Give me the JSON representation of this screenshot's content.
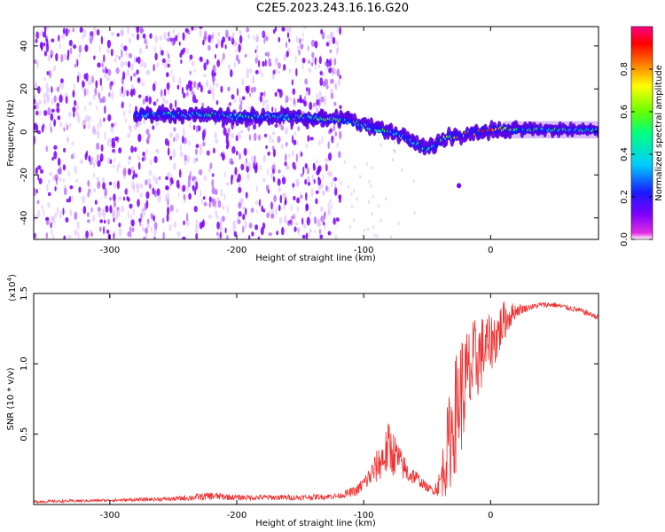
{
  "title": "C2E5.2023.243.16.16.G20",
  "chart_data": [
    {
      "type": "heatmap",
      "xlabel": "Height of straight line (km)",
      "ylabel": "Frequency (Hz)",
      "xlim": [
        -360,
        85
      ],
      "ylim": [
        -50,
        49
      ],
      "xticks": [
        -300,
        -200,
        -100,
        0
      ],
      "yticks": [
        -40,
        -20,
        0,
        20,
        40
      ],
      "colorbar": {
        "label": "Normalized spectral amplitude",
        "range": [
          0.0,
          1.0
        ],
        "ticks": [
          "0.0",
          "0.2",
          "0.4",
          "0.6",
          "0.8"
        ],
        "colors": [
          "#ffffff",
          "#e22ee2",
          "#7a00ff",
          "#1a1aff",
          "#00ccff",
          "#00ff80",
          "#66ff00",
          "#ffff00",
          "#ff8000",
          "#ff0000",
          "#ff0080"
        ]
      },
      "noise_band": {
        "x_range": [
          -360,
          -118
        ],
        "freq_range": [
          -50,
          49
        ],
        "note_amplitude": 0.3
      },
      "signal_trace": {
        "x": [
          -280,
          -250,
          -220,
          -200,
          -180,
          -150,
          -130,
          -110,
          -95,
          -80,
          -70,
          -60,
          -50,
          -40,
          -30,
          -20,
          -10,
          0,
          20,
          40,
          60,
          85
        ],
        "frequency": [
          8,
          8,
          8,
          7,
          7,
          7,
          6,
          5,
          2,
          0,
          -2,
          -5,
          -8,
          -4,
          -2,
          -1,
          0,
          1,
          1,
          1,
          1,
          1
        ],
        "amplitude": [
          0.4,
          0.45,
          0.5,
          0.45,
          0.5,
          0.5,
          0.55,
          0.6,
          0.55,
          0.5,
          0.5,
          0.55,
          0.6,
          0.6,
          0.65,
          0.85,
          0.95,
          0.9,
          0.6,
          0.55,
          0.5,
          0.45
        ]
      }
    },
    {
      "type": "line",
      "xlabel": "Height of straight line (km)",
      "ylabel": "SNR (10 * v/v)",
      "multiplier_label": "(x10",
      "multiplier_exp": "4",
      "multiplier_close": ")",
      "xlim": [
        -360,
        85
      ],
      "ylim": [
        0,
        1.5
      ],
      "xticks": [
        -300,
        -200,
        -100,
        0
      ],
      "yticks": [
        0.5,
        1.0,
        1.5
      ],
      "ytick_labels": [
        "0.5",
        "1.0",
        "1.5"
      ],
      "series": [
        {
          "color": "#f03030",
          "x": [
            -360,
            -300,
            -250,
            -220,
            -200,
            -150,
            -120,
            -105,
            -95,
            -85,
            -80,
            -75,
            -70,
            -65,
            -60,
            -55,
            -50,
            -45,
            -40,
            -35,
            -30,
            -25,
            -20,
            -15,
            -10,
            -5,
            0,
            5,
            10,
            20,
            30,
            40,
            50,
            60,
            70,
            85
          ],
          "values": [
            0.02,
            0.03,
            0.04,
            0.06,
            0.05,
            0.05,
            0.06,
            0.1,
            0.2,
            0.33,
            0.4,
            0.35,
            0.28,
            0.22,
            0.2,
            0.16,
            0.12,
            0.1,
            0.15,
            0.35,
            0.55,
            0.75,
            0.85,
            0.95,
            1.05,
            1.1,
            1.15,
            1.2,
            1.3,
            1.38,
            1.4,
            1.42,
            1.42,
            1.4,
            1.38,
            1.33
          ],
          "noise_amplitude": [
            0.01,
            0.01,
            0.015,
            0.03,
            0.02,
            0.02,
            0.02,
            0.04,
            0.08,
            0.15,
            0.2,
            0.15,
            0.1,
            0.08,
            0.06,
            0.04,
            0.03,
            0.03,
            0.1,
            0.3,
            0.4,
            0.45,
            0.4,
            0.35,
            0.3,
            0.25,
            0.2,
            0.2,
            0.15,
            0.05,
            0.02,
            0.02,
            0.02,
            0.02,
            0.02,
            0.02
          ]
        }
      ]
    }
  ]
}
